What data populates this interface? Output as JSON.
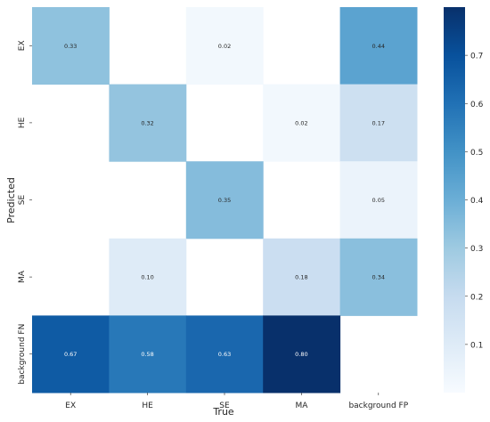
{
  "chart_data": {
    "type": "heatmap",
    "title": "",
    "xlabel": "True",
    "ylabel": "Predicted",
    "x_categories": [
      "EX",
      "HE",
      "SE",
      "MA",
      "background FP"
    ],
    "y_categories": [
      "EX",
      "HE",
      "SE",
      "MA",
      "background FN"
    ],
    "values": [
      [
        0.33,
        null,
        0.02,
        null,
        0.44
      ],
      [
        null,
        0.32,
        null,
        0.02,
        0.17
      ],
      [
        null,
        null,
        0.35,
        null,
        0.05
      ],
      [
        null,
        0.1,
        null,
        0.18,
        0.34
      ],
      [
        0.67,
        0.58,
        0.63,
        0.8,
        null
      ]
    ],
    "value_labels": [
      [
        "0.33",
        "",
        "0.02",
        "",
        "0.44"
      ],
      [
        "",
        "0.32",
        "",
        "0.02",
        "0.17"
      ],
      [
        "",
        "",
        "0.35",
        "",
        "0.05"
      ],
      [
        "",
        "0.10",
        "",
        "0.18",
        "0.34"
      ],
      [
        "0.67",
        "0.58",
        "0.63",
        "0.80",
        ""
      ]
    ],
    "colormap": "Blues",
    "colorbar": {
      "range": [
        0,
        0.8
      ],
      "ticks": [
        0.1,
        0.2,
        0.3,
        0.4,
        0.5,
        0.6,
        0.7
      ],
      "tick_labels": [
        "0.1",
        "0.2",
        "0.3",
        "0.4",
        "0.5",
        "0.6",
        "0.7"
      ]
    },
    "grid": false,
    "legend": "colorbar-right"
  }
}
